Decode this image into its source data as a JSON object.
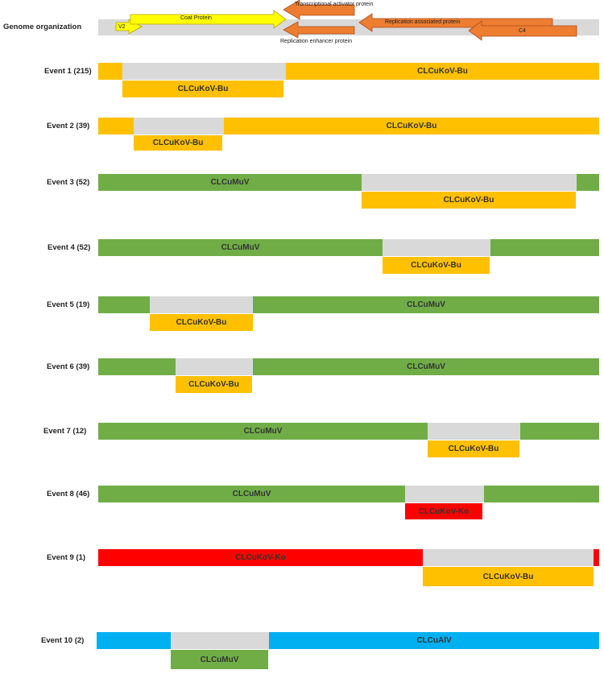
{
  "genome": {
    "label": "Genome organization",
    "orfs": [
      {
        "name": "V2",
        "dir": "right",
        "color": "#ffff00"
      },
      {
        "name": "Coat Protein",
        "dir": "right",
        "color": "#ffff00"
      },
      {
        "name": "Replication associated protein",
        "dir": "left",
        "color": "#ed7d31"
      },
      {
        "name": "C4",
        "dir": "left",
        "color": "#ed7d31"
      }
    ],
    "top_note": "Transcriptional activator protein",
    "bottom_note": "Replication enhancer protein"
  },
  "colors": {
    "CLCuKoV-Bu": "#ffc000",
    "CLCuMuV": "#70ad47",
    "CLCuKoV-Ko": "#ff0000",
    "CLCuAlV": "#00b0f0",
    "recombinant": "#d9d9d9"
  },
  "events": [
    {
      "label": "Event 1 (215)",
      "major": "CLCuKoV-Bu",
      "minor": "CLCuKoV-Bu"
    },
    {
      "label": "Event 2 (39)",
      "major": "CLCuKoV-Bu",
      "minor": "CLCuKoV-Bu"
    },
    {
      "label": "Event 3 (52)",
      "major": "CLCuMuV",
      "minor": "CLCuKoV-Bu"
    },
    {
      "label": "Event 4 (52)",
      "major": "CLCuMuV",
      "minor": "CLCuKoV-Bu"
    },
    {
      "label": "Event 5 (19)",
      "major": "CLCuMuV",
      "minor": "CLCuKoV-Bu"
    },
    {
      "label": "Event 6 (39)",
      "major": "CLCuMuV",
      "minor": "CLCuKoV-Bu"
    },
    {
      "label": "Event 7 (12)",
      "major": "CLCuMuV",
      "minor": "CLCuKoV-Bu"
    },
    {
      "label": "Event 8 (46)",
      "major": "CLCuMuV",
      "minor": "CLCuKoV-Ko"
    },
    {
      "label": "Event 9 (1)",
      "major": "CLCuKoV-Ko",
      "minor": "CLCuKoV-Bu"
    },
    {
      "label": "Event 10 (2)",
      "major": "CLCuAlV",
      "minor": "CLCuMuV"
    }
  ]
}
